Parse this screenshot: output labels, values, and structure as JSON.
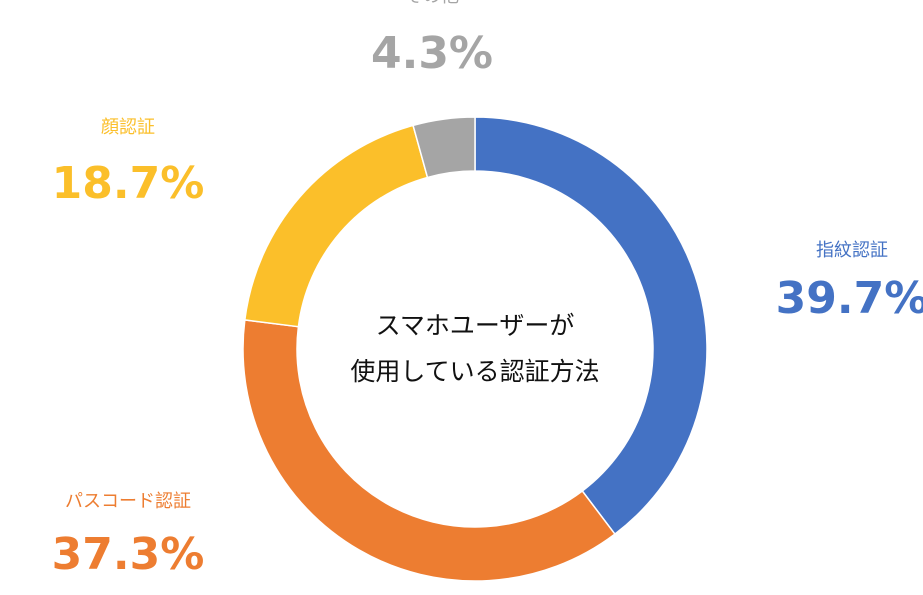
{
  "chart_data": {
    "type": "donut",
    "title": [
      "スマホユーザーが",
      "使用している認証方法"
    ],
    "categories": [
      "指紋認証",
      "パスコード認証",
      "顔認証",
      "その他"
    ],
    "values": [
      39.7,
      37.3,
      18.7,
      4.3
    ],
    "value_labels": [
      "39.7%",
      "37.3%",
      "18.7%",
      "4.3%"
    ],
    "colors": [
      "#4472c4",
      "#ed7d31",
      "#fbbf2a",
      "#a5a5a5"
    ]
  }
}
